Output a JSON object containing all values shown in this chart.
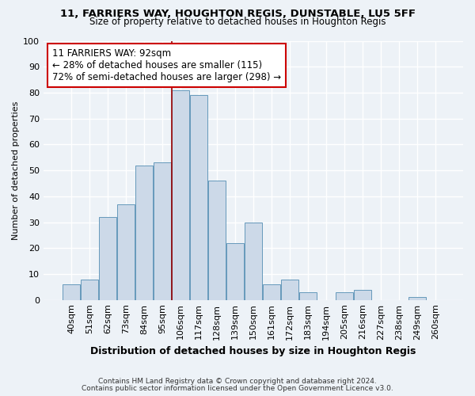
{
  "title1": "11, FARRIERS WAY, HOUGHTON REGIS, DUNSTABLE, LU5 5FF",
  "title2": "Size of property relative to detached houses in Houghton Regis",
  "xlabel": "Distribution of detached houses by size in Houghton Regis",
  "ylabel": "Number of detached properties",
  "footnote1": "Contains HM Land Registry data © Crown copyright and database right 2024.",
  "footnote2": "Contains public sector information licensed under the Open Government Licence v3.0.",
  "bar_labels": [
    "40sqm",
    "51sqm",
    "62sqm",
    "73sqm",
    "84sqm",
    "95sqm",
    "106sqm",
    "117sqm",
    "128sqm",
    "139sqm",
    "150sqm",
    "161sqm",
    "172sqm",
    "183sqm",
    "194sqm",
    "205sqm",
    "216sqm",
    "227sqm",
    "238sqm",
    "249sqm",
    "260sqm"
  ],
  "bar_values": [
    6,
    8,
    32,
    37,
    52,
    53,
    81,
    79,
    46,
    22,
    30,
    6,
    8,
    3,
    0,
    3,
    4,
    0,
    0,
    1,
    0
  ],
  "bar_color": "#ccd9e8",
  "bar_edge_color": "#6699bb",
  "vline_x": 5.5,
  "vline_color": "#990000",
  "annotation_title": "11 FARRIERS WAY: 92sqm",
  "annotation_line1": "← 28% of detached houses are smaller (115)",
  "annotation_line2": "72% of semi-detached houses are larger (298) →",
  "annotation_box_facecolor": "#ffffff",
  "annotation_box_edgecolor": "#cc0000",
  "ylim": [
    0,
    100
  ],
  "yticks": [
    0,
    10,
    20,
    30,
    40,
    50,
    60,
    70,
    80,
    90,
    100
  ],
  "background_color": "#edf2f7",
  "plot_background": "#edf2f7",
  "grid_color": "#ffffff",
  "title1_fontsize": 9.5,
  "title2_fontsize": 8.5,
  "xlabel_fontsize": 9,
  "ylabel_fontsize": 8,
  "tick_fontsize": 8,
  "annot_fontsize": 8.5,
  "footnote_fontsize": 6.5
}
